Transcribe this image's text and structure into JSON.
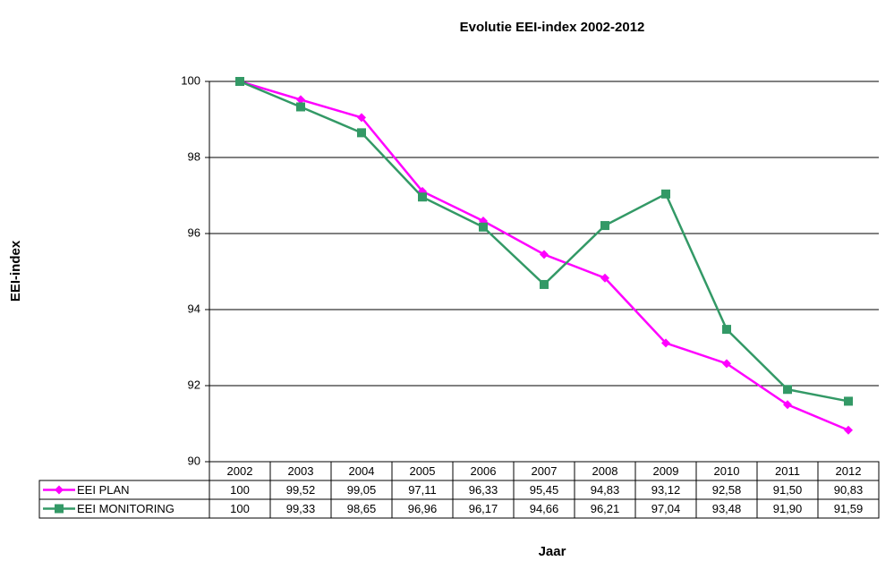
{
  "chart_data": {
    "type": "line",
    "title": "Evolutie EEI-index 2002-2012",
    "x_label": "Jaar",
    "y_label": "EEI-index",
    "categories": [
      "2002",
      "2003",
      "2004",
      "2005",
      "2006",
      "2007",
      "2008",
      "2009",
      "2010",
      "2011",
      "2012"
    ],
    "series": [
      {
        "name": "EEI PLAN",
        "color": "#ff00ff",
        "marker": "diamond",
        "values": [
          100,
          99.52,
          99.05,
          97.11,
          96.33,
          95.45,
          94.83,
          93.12,
          92.58,
          91.5,
          90.83
        ],
        "value_labels": [
          "100",
          "99,52",
          "99,05",
          "97,11",
          "96,33",
          "95,45",
          "94,83",
          "93,12",
          "92,58",
          "91,50",
          "90,83"
        ]
      },
      {
        "name": "EEI MONITORING",
        "color": "#339966",
        "marker": "square",
        "values": [
          100,
          99.33,
          98.65,
          96.96,
          96.17,
          94.66,
          96.21,
          97.04,
          93.48,
          91.9,
          91.59
        ],
        "value_labels": [
          "100",
          "99,33",
          "98,65",
          "96,96",
          "96,17",
          "94,66",
          "96,21",
          "97,04",
          "93,48",
          "91,90",
          "91,59"
        ]
      }
    ],
    "ylim": [
      90,
      100
    ],
    "yticks": [
      90,
      92,
      94,
      96,
      98,
      100
    ],
    "grid": true
  }
}
